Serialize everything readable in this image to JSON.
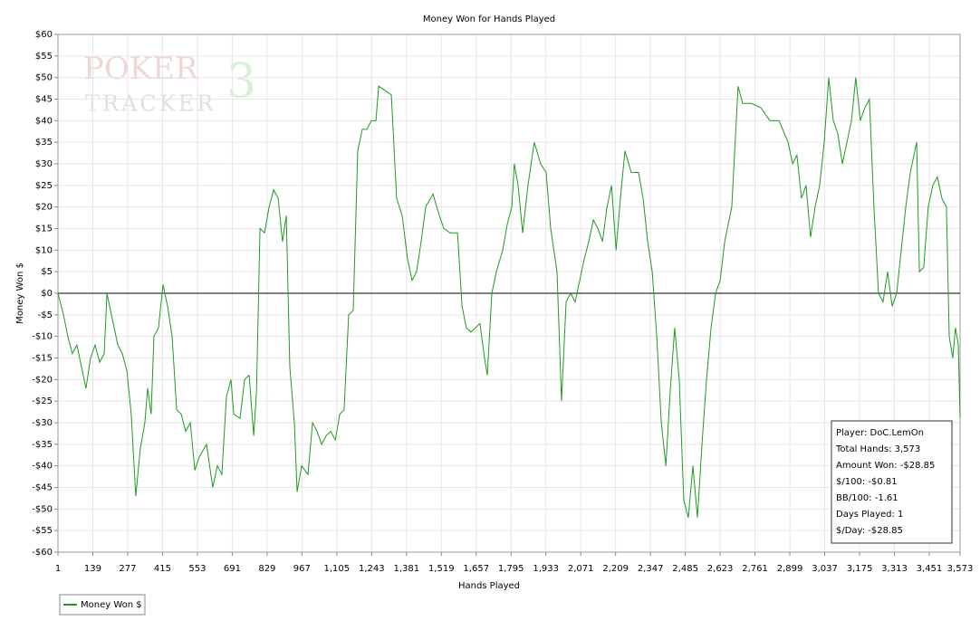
{
  "chart_data": {
    "type": "line",
    "title": "Money Won for Hands Played",
    "x_label": "Hands Played",
    "y_label": "Money Won $",
    "watermark": [
      "POKER",
      "TRACKER",
      "3"
    ],
    "info_box": [
      "Player: DoC.LemOn",
      "Total Hands: 3,573",
      "Amount Won: -$28.85",
      "$/100: -$0.81",
      "BB/100: -1.61",
      "Days Played: 1",
      "$/Day: -$28.85"
    ],
    "xlim": [
      1,
      3573
    ],
    "xticks": [
      1,
      139,
      277,
      415,
      553,
      691,
      829,
      967,
      {
        "value": 1105,
        "label": "1,105"
      },
      {
        "value": 1243,
        "label": "1,243"
      },
      {
        "value": 1381,
        "label": "1,381"
      },
      {
        "value": 1519,
        "label": "1,519"
      },
      {
        "value": 1657,
        "label": "1,657"
      },
      {
        "value": 1795,
        "label": "1,795"
      },
      {
        "value": 1933,
        "label": "1,933"
      },
      {
        "value": 2071,
        "label": "2,071"
      },
      {
        "value": 2209,
        "label": "2,209"
      },
      {
        "value": 2347,
        "label": "2,347"
      },
      {
        "value": 2485,
        "label": "2,485"
      },
      {
        "value": 2623,
        "label": "2,623"
      },
      {
        "value": 2761,
        "label": "2,761"
      },
      {
        "value": 2899,
        "label": "2,899"
      },
      {
        "value": 3037,
        "label": "3,037"
      },
      {
        "value": 3175,
        "label": "3,175"
      },
      {
        "value": 3313,
        "label": "3,313"
      },
      {
        "value": 3451,
        "label": "3,451"
      },
      {
        "value": 3573,
        "label": "3,573"
      }
    ],
    "ylim": [
      -60,
      60
    ],
    "yticks": [
      {
        "value": -60,
        "label": "-$60"
      },
      {
        "value": -55,
        "label": "-$55"
      },
      {
        "value": -50,
        "label": "-$50"
      },
      {
        "value": -45,
        "label": "-$45"
      },
      {
        "value": -40,
        "label": "-$40"
      },
      {
        "value": -35,
        "label": "-$35"
      },
      {
        "value": -30,
        "label": "-$30"
      },
      {
        "value": -25,
        "label": "-$25"
      },
      {
        "value": -20,
        "label": "-$20"
      },
      {
        "value": -15,
        "label": "-$15"
      },
      {
        "value": -10,
        "label": "-$10"
      },
      {
        "value": -5,
        "label": "-$5"
      },
      {
        "value": 0,
        "label": "$0"
      },
      {
        "value": 5,
        "label": "$5"
      },
      {
        "value": 10,
        "label": "$10"
      },
      {
        "value": 15,
        "label": "$15"
      },
      {
        "value": 20,
        "label": "$20"
      },
      {
        "value": 25,
        "label": "$25"
      },
      {
        "value": 30,
        "label": "$30"
      },
      {
        "value": 35,
        "label": "$35"
      },
      {
        "value": 40,
        "label": "$40"
      },
      {
        "value": 45,
        "label": "$45"
      },
      {
        "value": 50,
        "label": "$50"
      },
      {
        "value": 55,
        "label": "$55"
      },
      {
        "value": 60,
        "label": "$60"
      }
    ],
    "grid": true,
    "legend": "bottom-left",
    "x": [
      1,
      23,
      40,
      58,
      76,
      94,
      112,
      130,
      148,
      166,
      184,
      195,
      220,
      238,
      256,
      274,
      291,
      309,
      327,
      345,
      356,
      370,
      381,
      399,
      417,
      435,
      453,
      471,
      489,
      507,
      525,
      543,
      560,
      589,
      614,
      632,
      650,
      668,
      686,
      697,
      722,
      740,
      758,
      776,
      787,
      801,
      819,
      837,
      855,
      873,
      890,
      905,
      919,
      937,
      948,
      966,
      991,
      1009,
      1027,
      1045,
      1063,
      1081,
      1099,
      1117,
      1134,
      1152,
      1170,
      1188,
      1206,
      1224,
      1242,
      1260,
      1271,
      1296,
      1321,
      1342,
      1364,
      1385,
      1403,
      1421,
      1439,
      1457,
      1486,
      1511,
      1529,
      1554,
      1583,
      1601,
      1618,
      1636,
      1672,
      1690,
      1701,
      1719,
      1737,
      1762,
      1780,
      1798,
      1808,
      1823,
      1841,
      1862,
      1887,
      1912,
      1934,
      1952,
      1977,
      1995,
      2013,
      2031,
      2049,
      2067,
      2085,
      2103,
      2121,
      2139,
      2157,
      2175,
      2193,
      2211,
      2228,
      2246,
      2271,
      2300,
      2318,
      2336,
      2354,
      2372,
      2390,
      2408,
      2426,
      2443,
      2461,
      2479,
      2497,
      2515,
      2533,
      2551,
      2569,
      2587,
      2605,
      2623,
      2641,
      2669,
      2694,
      2712,
      2748,
      2784,
      2820,
      2856,
      2892,
      2910,
      2927,
      2945,
      2963,
      2981,
      2999,
      3017,
      3035,
      3053,
      3071,
      3089,
      3107,
      3125,
      3143,
      3160,
      3178,
      3196,
      3214,
      3232,
      3250,
      3268,
      3286,
      3304,
      3322,
      3340,
      3358,
      3376,
      3401,
      3412,
      3429,
      3447,
      3465,
      3483,
      3501,
      3519,
      3530,
      3544,
      3555,
      3566,
      3573
    ],
    "series": [
      {
        "name": "Money Won $",
        "color": "#1f9a1f",
        "values": [
          0,
          -5,
          -10,
          -14,
          -12,
          -17,
          -22,
          -15,
          -12,
          -16,
          -14,
          0,
          -7,
          -12,
          -14,
          -18,
          -28,
          -47,
          -36,
          -30,
          -22,
          -28,
          -10,
          -8,
          2,
          -3,
          -10,
          -27,
          -28,
          -32,
          -30,
          -41,
          -38,
          -35,
          -45,
          -40,
          -42,
          -24,
          -20,
          -28,
          -29,
          -20,
          -19,
          -33,
          -23,
          15,
          14,
          20,
          24,
          22,
          12,
          18,
          -17,
          -30,
          -46,
          -40,
          -42,
          -30,
          -32,
          -35,
          -33,
          -32,
          -34,
          -28,
          -27,
          -5,
          -4,
          33,
          38,
          38,
          40,
          40,
          48,
          47,
          46,
          22,
          18,
          8,
          3,
          5,
          12,
          20,
          23,
          18,
          15,
          14,
          14,
          -3,
          -8,
          -9,
          -7,
          -15,
          -19,
          0,
          5,
          10,
          16,
          20,
          30,
          25,
          14,
          25,
          35,
          30,
          28,
          15,
          5,
          -25,
          -2,
          0,
          -2,
          3,
          8,
          12,
          17,
          15,
          12,
          20,
          25,
          10,
          22,
          33,
          28,
          28,
          22,
          12,
          5,
          -10,
          -30,
          -40,
          -22,
          -8,
          -20,
          -48,
          -52,
          -40,
          -52,
          -35,
          -20,
          -8,
          0,
          3,
          12,
          20,
          48,
          44,
          44,
          43,
          40,
          40,
          35,
          30,
          32,
          22,
          25,
          13,
          20,
          25,
          35,
          50,
          40,
          37,
          30,
          35,
          40,
          50,
          40,
          43,
          45,
          20,
          0,
          -2,
          5,
          -3,
          0,
          10,
          20,
          28,
          35,
          5,
          6,
          20,
          25,
          27,
          22,
          20,
          -10,
          -15,
          -8,
          -12,
          -28.85
        ]
      }
    ]
  }
}
